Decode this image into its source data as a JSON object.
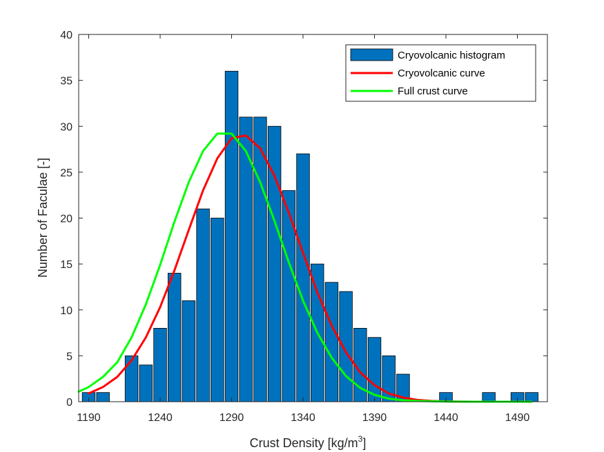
{
  "chart_data": {
    "type": "bar",
    "title": "",
    "xlabel": "Crust Density [kg/m",
    "xlabel_superscript": "3",
    "xlabel_suffix": "]",
    "ylabel": "Number of Faculae [-]",
    "xlim": [
      1183,
      1511
    ],
    "ylim": [
      0,
      40
    ],
    "xticks": [
      1190,
      1240,
      1290,
      1340,
      1390,
      1440,
      1490
    ],
    "yticks": [
      0,
      5,
      10,
      15,
      20,
      25,
      30,
      35,
      40
    ],
    "grid": false,
    "legend_position": "top-right",
    "bin_width": 10,
    "bar_color": "#0072BD",
    "histogram": {
      "name": "Cryovolcanic histogram",
      "bin_centers": [
        1190,
        1200,
        1210,
        1220,
        1230,
        1240,
        1250,
        1260,
        1270,
        1280,
        1290,
        1300,
        1310,
        1320,
        1330,
        1340,
        1350,
        1360,
        1370,
        1380,
        1390,
        1400,
        1410,
        1420,
        1430,
        1440,
        1450,
        1460,
        1470,
        1480,
        1490,
        1500
      ],
      "values": [
        1,
        1,
        0,
        5,
        4,
        8,
        14,
        11,
        21,
        20,
        36,
        31,
        31,
        30,
        23,
        27,
        15,
        13,
        12,
        8,
        7,
        5,
        3,
        0,
        0,
        1,
        0,
        0,
        1,
        0,
        1,
        1
      ]
    },
    "series": [
      {
        "name": "Cryovolcanic curve",
        "color": "#FF0000",
        "x": [
          1190,
          1200,
          1210,
          1220,
          1230,
          1240,
          1250,
          1260,
          1270,
          1280,
          1290,
          1300,
          1310,
          1320,
          1330,
          1340,
          1350,
          1360,
          1370,
          1380,
          1390,
          1400,
          1410,
          1420,
          1430,
          1440,
          1450,
          1460,
          1470,
          1480,
          1490,
          1500
        ],
        "values": [
          0.9,
          1.6,
          2.7,
          4.5,
          7.0,
          10.3,
          14.3,
          18.7,
          23.0,
          26.5,
          28.7,
          29.0,
          27.6,
          24.6,
          20.6,
          16.2,
          11.9,
          8.3,
          5.4,
          3.2,
          1.8,
          0.9,
          0.45,
          0.2,
          0.08,
          0.03,
          0.01,
          0.0,
          0.0,
          0.0,
          0.0,
          0.0
        ]
      },
      {
        "name": "Full crust curve",
        "color": "#00FF00",
        "x": [
          1183,
          1190,
          1200,
          1210,
          1220,
          1230,
          1240,
          1250,
          1260,
          1270,
          1280,
          1290,
          1300,
          1310,
          1320,
          1330,
          1340,
          1350,
          1360,
          1370,
          1380,
          1390,
          1400,
          1410,
          1420,
          1430,
          1440,
          1450,
          1460,
          1470,
          1480,
          1490,
          1500
        ],
        "values": [
          1.1,
          1.6,
          2.7,
          4.3,
          7.0,
          10.6,
          14.9,
          19.6,
          23.9,
          27.3,
          29.2,
          29.2,
          27.3,
          23.9,
          19.7,
          15.2,
          11.0,
          7.5,
          4.8,
          2.8,
          1.5,
          0.75,
          0.33,
          0.15,
          0.08,
          0.05,
          0.02,
          0.01,
          0.0,
          0.0,
          0.0,
          0.0,
          0.0
        ]
      }
    ]
  }
}
